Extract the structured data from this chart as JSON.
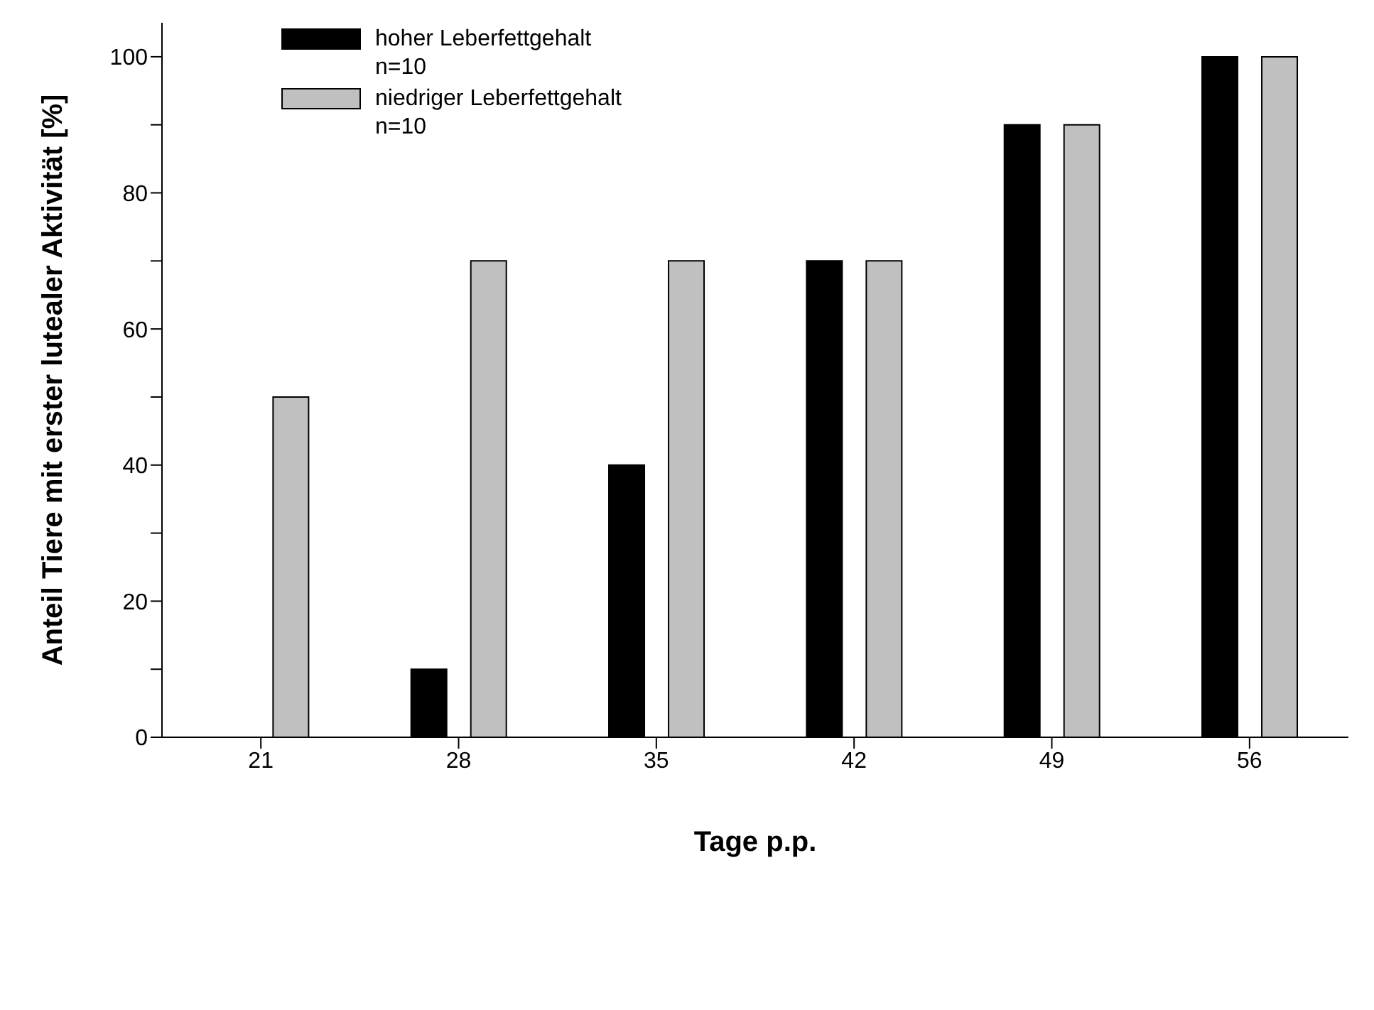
{
  "chart_data": {
    "type": "bar",
    "xlabel": "Tage p.p.",
    "ylabel": "Anteil Tiere mit erster lutealer Aktivität [%]",
    "categories": [
      "21",
      "28",
      "35",
      "42",
      "49",
      "56"
    ],
    "series": [
      {
        "name": "hoher Leberfettgehalt\nn=10",
        "color": "#000000",
        "values": [
          0,
          10,
          40,
          70,
          90,
          100
        ]
      },
      {
        "name": "niedriger Leberfettgehalt\nn=10",
        "color": "#c0c0c0",
        "values": [
          50,
          70,
          70,
          70,
          90,
          100
        ]
      }
    ],
    "ylim": [
      0,
      105
    ],
    "yticks": [
      0,
      {
        "value": 10,
        "label": null
      },
      20,
      {
        "value": 30,
        "label": null
      },
      40,
      {
        "value": 50,
        "label": null
      },
      60,
      {
        "value": 70,
        "label": null
      },
      80,
      {
        "value": 90,
        "label": null
      },
      100
    ],
    "grid": false,
    "legend": "top left"
  }
}
